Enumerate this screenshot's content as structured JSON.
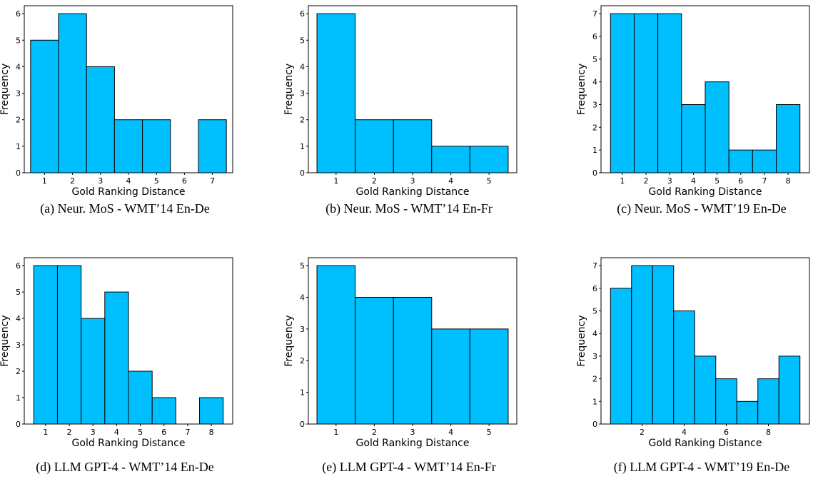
{
  "figure": {
    "bar_color": "#00bfff",
    "edge_color": "#000000"
  },
  "chart_data": [
    {
      "type": "bar",
      "caption": "(a) Neur. MoS - WMT’14 En-De",
      "xlabel": "Gold Ranking Distance",
      "ylabel": "Frequency",
      "bin_edges": [
        0.5,
        1.5,
        2.5,
        3.5,
        4.5,
        5.5,
        6.5,
        7.5
      ],
      "values": [
        5,
        6,
        4,
        2,
        2,
        0,
        2
      ],
      "xlim": [
        0.275,
        7.725
      ],
      "ylim": [
        0,
        6.3
      ],
      "xticks": [
        1,
        2,
        3,
        4,
        5,
        6,
        7
      ],
      "yticks": [
        0,
        1,
        2,
        3,
        4,
        5,
        6
      ]
    },
    {
      "type": "bar",
      "caption": "(b) Neur. MoS - WMT’14 En-Fr",
      "xlabel": "Gold Ranking Distance",
      "ylabel": "Frequency",
      "bin_edges": [
        0.5,
        1.5,
        2.5,
        3.5,
        4.5,
        5.5
      ],
      "values": [
        6,
        2,
        2,
        1,
        1
      ],
      "xlim": [
        0.275,
        5.725
      ],
      "ylim": [
        0,
        6.3
      ],
      "xticks": [
        1,
        2,
        3,
        4,
        5
      ],
      "yticks": [
        0,
        1,
        2,
        3,
        4,
        5,
        6
      ]
    },
    {
      "type": "bar",
      "caption": "(c) Neur. MoS - WMT’19 En-De",
      "xlabel": "Gold Ranking Distance",
      "ylabel": "Frequency",
      "bin_edges": [
        0.5,
        1.5,
        2.5,
        3.5,
        4.5,
        5.5,
        6.5,
        7.5,
        8.5
      ],
      "values": [
        7,
        7,
        7,
        3,
        4,
        1,
        1,
        3
      ],
      "xlim": [
        0.1,
        8.9
      ],
      "ylim": [
        0,
        7.35
      ],
      "xticks": [
        1,
        2,
        3,
        4,
        5,
        6,
        7,
        8
      ],
      "yticks": [
        0,
        1,
        2,
        3,
        4,
        5,
        6,
        7
      ]
    },
    {
      "type": "bar",
      "caption": "(d) LLM GPT-4 - WMT’14 En-De",
      "xlabel": "Gold Ranking Distance",
      "ylabel": "Frequency",
      "bin_edges": [
        0.5,
        1.5,
        2.5,
        3.5,
        4.5,
        5.5,
        6.5,
        7.5,
        8.5
      ],
      "values": [
        6,
        6,
        4,
        5,
        2,
        1,
        0,
        1
      ],
      "xlim": [
        0.1,
        8.9
      ],
      "ylim": [
        0,
        6.3
      ],
      "xticks": [
        1,
        2,
        3,
        4,
        5,
        6,
        7,
        8
      ],
      "yticks": [
        0,
        1,
        2,
        3,
        4,
        5,
        6
      ]
    },
    {
      "type": "bar",
      "caption": "(e) LLM GPT-4 - WMT’14 En-Fr",
      "xlabel": "Gold Ranking Distance",
      "ylabel": "Frequency",
      "bin_edges": [
        0.5,
        1.5,
        2.5,
        3.5,
        4.5,
        5.5
      ],
      "values": [
        5,
        4,
        4,
        3,
        3
      ],
      "xlim": [
        0.275,
        5.725
      ],
      "ylim": [
        0,
        5.25
      ],
      "xticks": [
        1,
        2,
        3,
        4,
        5
      ],
      "yticks": [
        0,
        1,
        2,
        3,
        4,
        5
      ]
    },
    {
      "type": "bar",
      "caption": "(f) LLM GPT-4 - WMT’19 En-De",
      "xlabel": "Gold Ranking Distance",
      "ylabel": "Frequency",
      "bin_edges": [
        0.5,
        1.5,
        2.5,
        3.5,
        4.5,
        5.5,
        6.5,
        7.5,
        8.5,
        9.5
      ],
      "values": [
        6,
        7,
        7,
        5,
        3,
        2,
        1,
        2,
        3
      ],
      "xlim": [
        0.05,
        9.95
      ],
      "ylim": [
        0,
        7.35
      ],
      "xticks": [
        2,
        4,
        6,
        8
      ],
      "yticks": [
        0,
        1,
        2,
        3,
        4,
        5,
        6,
        7
      ]
    }
  ]
}
